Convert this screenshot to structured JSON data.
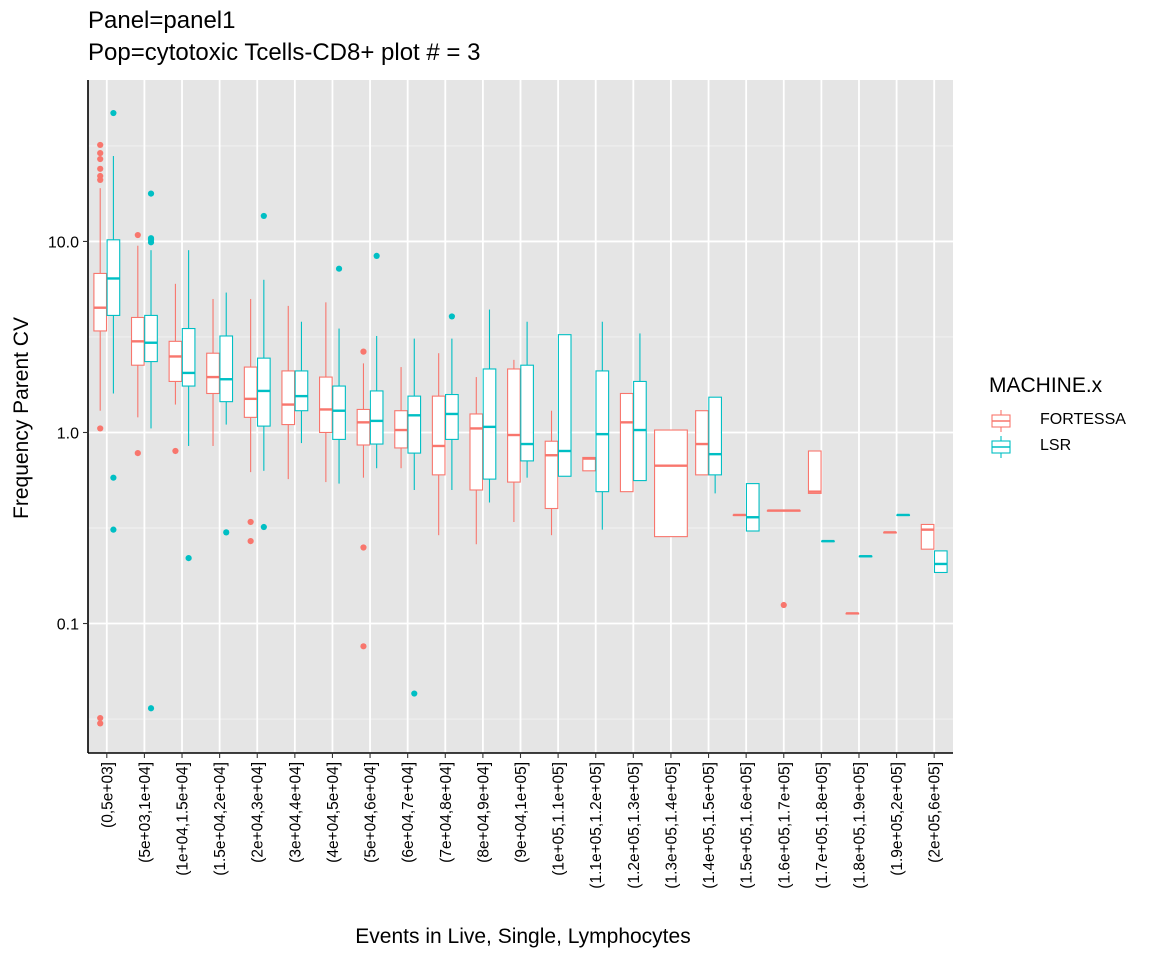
{
  "chart_data": {
    "type": "box",
    "title": "Panel=panel1",
    "subtitle": "Pop=cytotoxic Tcells-CD8+ plot # = 3",
    "xlabel": "Events in Live, Single, Lymphocytes",
    "ylabel": "Frequency Parent CV",
    "yscale": "log10",
    "ylim": [
      0.021,
      70
    ],
    "yticks": [
      0.1,
      1.0,
      10.0
    ],
    "ytick_labels": [
      "0.1",
      "1.0",
      "10.0"
    ],
    "grid": true,
    "legend": {
      "title": "MACHINE.x",
      "position": "right"
    },
    "categories": [
      "(0,5e+03]",
      "(5e+03,1e+04]",
      "(1e+04,1.5e+04]",
      "(1.5e+04,2e+04]",
      "(2e+04,3e+04]",
      "(3e+04,4e+04]",
      "(4e+04,5e+04]",
      "(5e+04,6e+04]",
      "(6e+04,7e+04]",
      "(7e+04,8e+04]",
      "(8e+04,9e+04]",
      "(9e+04,1e+05]",
      "(1e+05,1.1e+05]",
      "(1.1e+05,1.2e+05]",
      "(1.2e+05,1.3e+05]",
      "(1.3e+05,1.4e+05]",
      "(1.4e+05,1.5e+05]",
      "(1.5e+05,1.6e+05]",
      "(1.6e+05,1.7e+05]",
      "(1.7e+05,1.8e+05]",
      "(1.8e+05,1.9e+05]",
      "(1.9e+05,2e+05]",
      "(2e+05,6e+05]"
    ],
    "series": [
      {
        "name": "FORTESSA",
        "color": "#F8766D",
        "boxes": [
          {
            "cat": 0,
            "q1": 3.4,
            "median": 4.5,
            "q3": 6.8,
            "lo": 1.3,
            "hi": 19,
            "outliers": [
              32,
              29,
              27,
              24,
              22,
              21,
              1.05,
              0.032,
              0.03
            ]
          },
          {
            "cat": 1,
            "q1": 2.25,
            "median": 3.0,
            "q3": 4.0,
            "lo": 1.2,
            "hi": 9.5,
            "outliers": [
              10.8,
              0.78
            ]
          },
          {
            "cat": 2,
            "q1": 1.85,
            "median": 2.5,
            "q3": 3.0,
            "lo": 1.4,
            "hi": 6.0,
            "outliers": [
              0.8
            ]
          },
          {
            "cat": 3,
            "q1": 1.6,
            "median": 1.95,
            "q3": 2.6,
            "lo": 0.85,
            "hi": 5.0,
            "outliers": []
          },
          {
            "cat": 4,
            "q1": 1.2,
            "median": 1.5,
            "q3": 2.2,
            "lo": 0.62,
            "hi": 5.0,
            "outliers": [
              0.34,
              0.27
            ]
          },
          {
            "cat": 5,
            "q1": 1.1,
            "median": 1.4,
            "q3": 2.1,
            "lo": 0.57,
            "hi": 4.6,
            "outliers": []
          },
          {
            "cat": 6,
            "q1": 1.0,
            "median": 1.32,
            "q3": 1.95,
            "lo": 0.55,
            "hi": 4.8,
            "outliers": []
          },
          {
            "cat": 7,
            "q1": 0.86,
            "median": 1.13,
            "q3": 1.32,
            "lo": 0.58,
            "hi": 2.3,
            "outliers": [
              2.65,
              0.25,
              0.076
            ]
          },
          {
            "cat": 8,
            "q1": 0.83,
            "median": 1.03,
            "q3": 1.3,
            "lo": 0.65,
            "hi": 2.2,
            "outliers": []
          },
          {
            "cat": 9,
            "q1": 0.6,
            "median": 0.85,
            "q3": 1.55,
            "lo": 0.29,
            "hi": 2.6,
            "outliers": []
          },
          {
            "cat": 10,
            "q1": 0.5,
            "median": 1.05,
            "q3": 1.25,
            "lo": 0.26,
            "hi": 1.95,
            "outliers": []
          },
          {
            "cat": 11,
            "q1": 0.55,
            "median": 0.97,
            "q3": 2.15,
            "lo": 0.34,
            "hi": 2.4,
            "outliers": []
          },
          {
            "cat": 12,
            "q1": 0.4,
            "median": 0.76,
            "q3": 0.9,
            "lo": 0.29,
            "hi": 1.3,
            "outliers": []
          },
          {
            "cat": 13,
            "q1": 0.63,
            "median": 0.73,
            "q3": 0.74,
            "lo": 0.63,
            "hi": 0.74,
            "outliers": []
          },
          {
            "cat": 14,
            "q1": 0.49,
            "median": 1.13,
            "q3": 1.6,
            "lo": 0.49,
            "hi": 1.6,
            "outliers": []
          },
          {
            "cat": 15,
            "q1": 0.285,
            "median": 0.67,
            "q3": 1.03,
            "lo": 0.285,
            "hi": 1.03,
            "outliers": []
          },
          {
            "cat": 16,
            "q1": 0.6,
            "median": 0.87,
            "q3": 1.3,
            "lo": 0.6,
            "hi": 1.3,
            "outliers": []
          },
          {
            "cat": 17,
            "q1": 0.37,
            "median": 0.37,
            "q3": 0.37,
            "lo": 0.37,
            "hi": 0.37,
            "outliers": []
          },
          {
            "cat": 18,
            "q1": 0.39,
            "median": 0.39,
            "q3": 0.39,
            "lo": 0.39,
            "hi": 0.39,
            "outliers": [
              0.125
            ]
          },
          {
            "cat": 19,
            "q1": 0.48,
            "median": 0.49,
            "q3": 0.8,
            "lo": 0.48,
            "hi": 0.8,
            "outliers": []
          },
          {
            "cat": 20,
            "q1": 0.113,
            "median": 0.113,
            "q3": 0.113,
            "lo": 0.113,
            "hi": 0.113,
            "outliers": []
          },
          {
            "cat": 21,
            "q1": 0.3,
            "median": 0.3,
            "q3": 0.3,
            "lo": 0.3,
            "hi": 0.3,
            "outliers": []
          },
          {
            "cat": 22,
            "q1": 0.245,
            "median": 0.31,
            "q3": 0.33,
            "lo": 0.245,
            "hi": 0.33,
            "outliers": []
          }
        ]
      },
      {
        "name": "LSR",
        "color": "#00BFC4",
        "boxes": [
          {
            "cat": 0,
            "q1": 4.1,
            "median": 6.4,
            "q3": 10.2,
            "lo": 1.6,
            "hi": 28,
            "outliers": [
              47,
              0.58,
              0.31
            ]
          },
          {
            "cat": 1,
            "q1": 2.35,
            "median": 2.95,
            "q3": 4.1,
            "lo": 1.05,
            "hi": 9.0,
            "outliers": [
              17.8,
              10.4,
              10.2,
              9.9,
              0.036
            ]
          },
          {
            "cat": 2,
            "q1": 1.75,
            "median": 2.05,
            "q3": 3.5,
            "lo": 0.85,
            "hi": 9.0,
            "outliers": [
              0.22
            ]
          },
          {
            "cat": 3,
            "q1": 1.45,
            "median": 1.9,
            "q3": 3.2,
            "lo": 1.1,
            "hi": 5.4,
            "outliers": [
              0.3
            ]
          },
          {
            "cat": 4,
            "q1": 1.08,
            "median": 1.65,
            "q3": 2.45,
            "lo": 0.63,
            "hi": 6.3,
            "outliers": [
              13.6,
              0.32
            ]
          },
          {
            "cat": 5,
            "q1": 1.3,
            "median": 1.55,
            "q3": 2.1,
            "lo": 0.88,
            "hi": 3.8,
            "outliers": []
          },
          {
            "cat": 6,
            "q1": 0.92,
            "median": 1.3,
            "q3": 1.75,
            "lo": 0.54,
            "hi": 3.5,
            "outliers": [
              7.2
            ]
          },
          {
            "cat": 7,
            "q1": 0.87,
            "median": 1.15,
            "q3": 1.65,
            "lo": 0.65,
            "hi": 3.2,
            "outliers": [
              8.4
            ]
          },
          {
            "cat": 8,
            "q1": 0.78,
            "median": 1.23,
            "q3": 1.55,
            "lo": 0.5,
            "hi": 3.1,
            "outliers": [
              0.043
            ]
          },
          {
            "cat": 9,
            "q1": 0.92,
            "median": 1.25,
            "q3": 1.58,
            "lo": 0.5,
            "hi": 3.1,
            "outliers": [
              4.05
            ]
          },
          {
            "cat": 10,
            "q1": 0.57,
            "median": 1.07,
            "q3": 2.15,
            "lo": 0.43,
            "hi": 4.4,
            "outliers": []
          },
          {
            "cat": 11,
            "q1": 0.71,
            "median": 0.87,
            "q3": 2.25,
            "lo": 0.58,
            "hi": 3.8,
            "outliers": []
          },
          {
            "cat": 12,
            "q1": 0.59,
            "median": 0.8,
            "q3": 3.25,
            "lo": 0.59,
            "hi": 3.25,
            "outliers": []
          },
          {
            "cat": 13,
            "q1": 0.49,
            "median": 0.98,
            "q3": 2.1,
            "lo": 0.31,
            "hi": 3.8,
            "outliers": []
          },
          {
            "cat": 14,
            "q1": 0.56,
            "median": 1.03,
            "q3": 1.85,
            "lo": 0.56,
            "hi": 3.3,
            "outliers": []
          },
          {
            "cat": 16,
            "q1": 0.6,
            "median": 0.77,
            "q3": 1.53,
            "lo": 0.48,
            "hi": 1.53,
            "outliers": []
          },
          {
            "cat": 17,
            "q1": 0.305,
            "median": 0.36,
            "q3": 0.54,
            "lo": 0.305,
            "hi": 0.54,
            "outliers": []
          },
          {
            "cat": 19,
            "q1": 0.27,
            "median": 0.27,
            "q3": 0.27,
            "lo": 0.27,
            "hi": 0.27,
            "outliers": []
          },
          {
            "cat": 20,
            "q1": 0.225,
            "median": 0.225,
            "q3": 0.225,
            "lo": 0.225,
            "hi": 0.225,
            "outliers": []
          },
          {
            "cat": 21,
            "q1": 0.37,
            "median": 0.37,
            "q3": 0.37,
            "lo": 0.37,
            "hi": 0.37,
            "outliers": []
          },
          {
            "cat": 22,
            "q1": 0.185,
            "median": 0.205,
            "q3": 0.24,
            "lo": 0.185,
            "hi": 0.24,
            "outliers": []
          }
        ]
      }
    ]
  }
}
